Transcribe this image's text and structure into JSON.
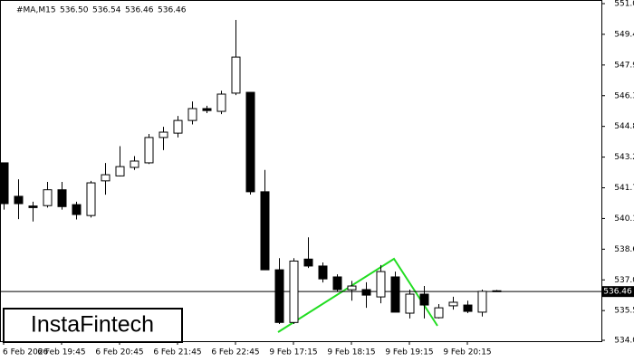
{
  "chart_data": {
    "type": "candlestick",
    "title": "#MA,M15",
    "header_values": [
      "536.50",
      "536.54",
      "536.46",
      "536.46"
    ],
    "brand": "InstaFintech",
    "categories": [
      "6 Feb 2026",
      null,
      null,
      null,
      "6 Feb 19:45",
      null,
      null,
      null,
      "6 Feb 20:45",
      null,
      null,
      null,
      "6 Feb 21:45",
      null,
      null,
      null,
      "6 Feb 22:45",
      null,
      null,
      null,
      "9 Feb 17:15",
      null,
      null,
      null,
      "9 Feb 18:15",
      null,
      null,
      null,
      "9 Feb 19:15",
      null,
      null,
      null,
      "9 Feb 20:15",
      null,
      null
    ],
    "open": [
      542.96,
      541.27,
      540.78,
      540.8,
      541.6,
      540.85,
      540.3,
      542.05,
      542.3,
      542.73,
      542.96,
      544.24,
      544.46,
      545.1,
      545.7,
      545.56,
      546.48,
      546.52,
      541.5,
      537.56,
      534.9,
      538.1,
      537.75,
      537.2,
      536.55,
      536.56,
      536.19,
      537.2,
      535.37,
      536.33,
      535.14,
      535.74,
      535.78,
      535.42,
      536.5
    ],
    "high": [
      542.96,
      542.13,
      541.0,
      542.0,
      542.0,
      541.0,
      542.05,
      542.95,
      543.8,
      543.3,
      544.42,
      544.78,
      545.33,
      546.06,
      545.84,
      546.6,
      550.18,
      546.52,
      542.6,
      538.15,
      538.15,
      539.2,
      537.93,
      537.33,
      537.0,
      536.93,
      537.8,
      537.47,
      536.56,
      536.74,
      535.83,
      536.2,
      536.0,
      536.56,
      536.54
    ],
    "low": [
      540.6,
      540.12,
      540.0,
      540.7,
      540.6,
      540.1,
      540.2,
      541.35,
      542.27,
      542.6,
      542.9,
      543.6,
      544.24,
      544.9,
      545.47,
      545.42,
      546.38,
      541.36,
      537.56,
      534.82,
      534.82,
      537.65,
      536.92,
      536.47,
      536.0,
      535.64,
      535.87,
      535.42,
      535.1,
      535.1,
      535.1,
      535.55,
      535.37,
      535.2,
      536.46
    ],
    "close": [
      540.9,
      540.9,
      540.7,
      541.6,
      540.75,
      540.35,
      541.95,
      542.36,
      542.77,
      543.05,
      544.24,
      544.51,
      545.1,
      545.7,
      545.6,
      546.43,
      548.3,
      541.5,
      537.56,
      534.9,
      538.0,
      537.75,
      537.1,
      536.56,
      536.74,
      536.28,
      537.47,
      535.42,
      536.33,
      535.78,
      535.64,
      535.92,
      535.46,
      536.47,
      536.46
    ],
    "up_color": "#ffffff",
    "down_color": "#000000",
    "current_price": {
      "value": 536.46,
      "label": "536.46"
    },
    "ylim": [
      534,
      551
    ],
    "yticks": [
      {
        "value": 551,
        "label": "551.00"
      },
      549.45,
      {
        "value": 547.9,
        "label": "547.90"
      },
      546.35,
      {
        "value": 544.8,
        "label": "544.80"
      },
      543.25,
      {
        "value": 541.7,
        "label": "541.70"
      },
      540.15,
      {
        "value": 538.6,
        "label": "538.60"
      },
      537.05,
      {
        "value": 535.5,
        "label": "535.50"
      },
      {
        "value": 534,
        "label": "534.00"
      }
    ]
  }
}
